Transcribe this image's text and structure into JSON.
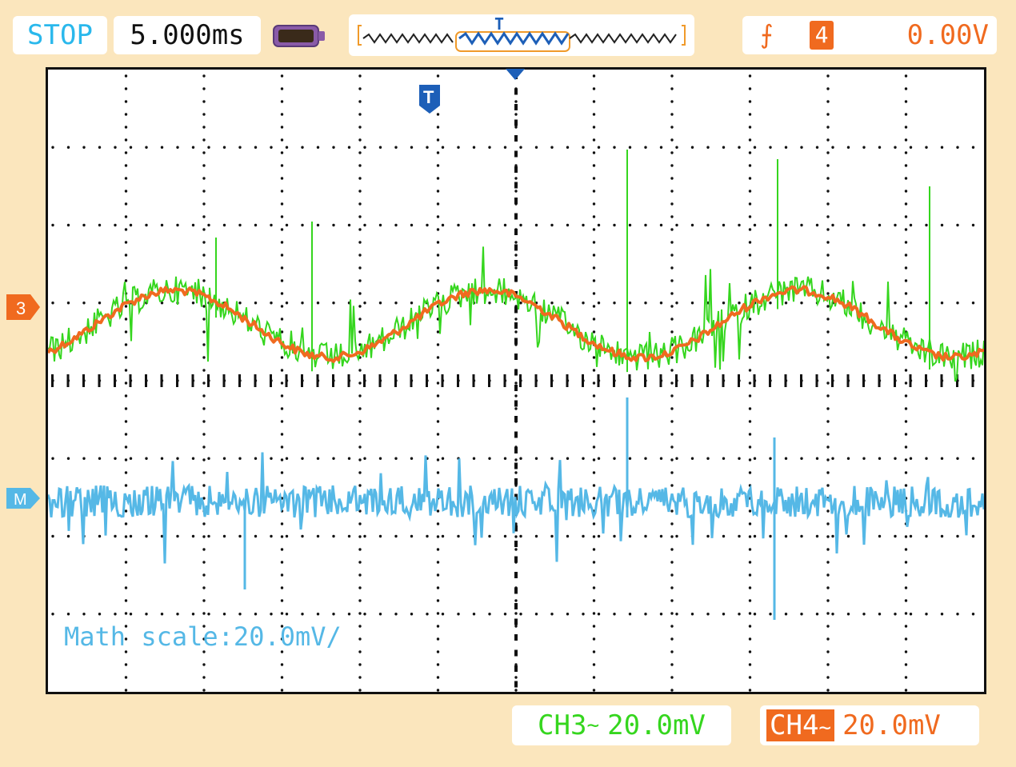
{
  "status": {
    "run_state": "STOP",
    "timebase": "5.000ms"
  },
  "trigger": {
    "edge_icon": "rising-edge-icon",
    "source": "4",
    "level": "0.00V"
  },
  "memory_bar": {
    "trigger_marker": "T"
  },
  "markers": {
    "ch3": "3",
    "math": "M",
    "trigger_position": "T"
  },
  "math": {
    "label": "Math scale:20.0mV/"
  },
  "channels": {
    "ch3": {
      "name": "CH3",
      "coupling": "~",
      "scale": "20.0mV",
      "color": "#35d61e"
    },
    "ch4": {
      "name": "CH4",
      "coupling": "~",
      "scale": "20.0mV",
      "color": "#f06a1f"
    }
  },
  "math_color": "#55b8e6"
}
